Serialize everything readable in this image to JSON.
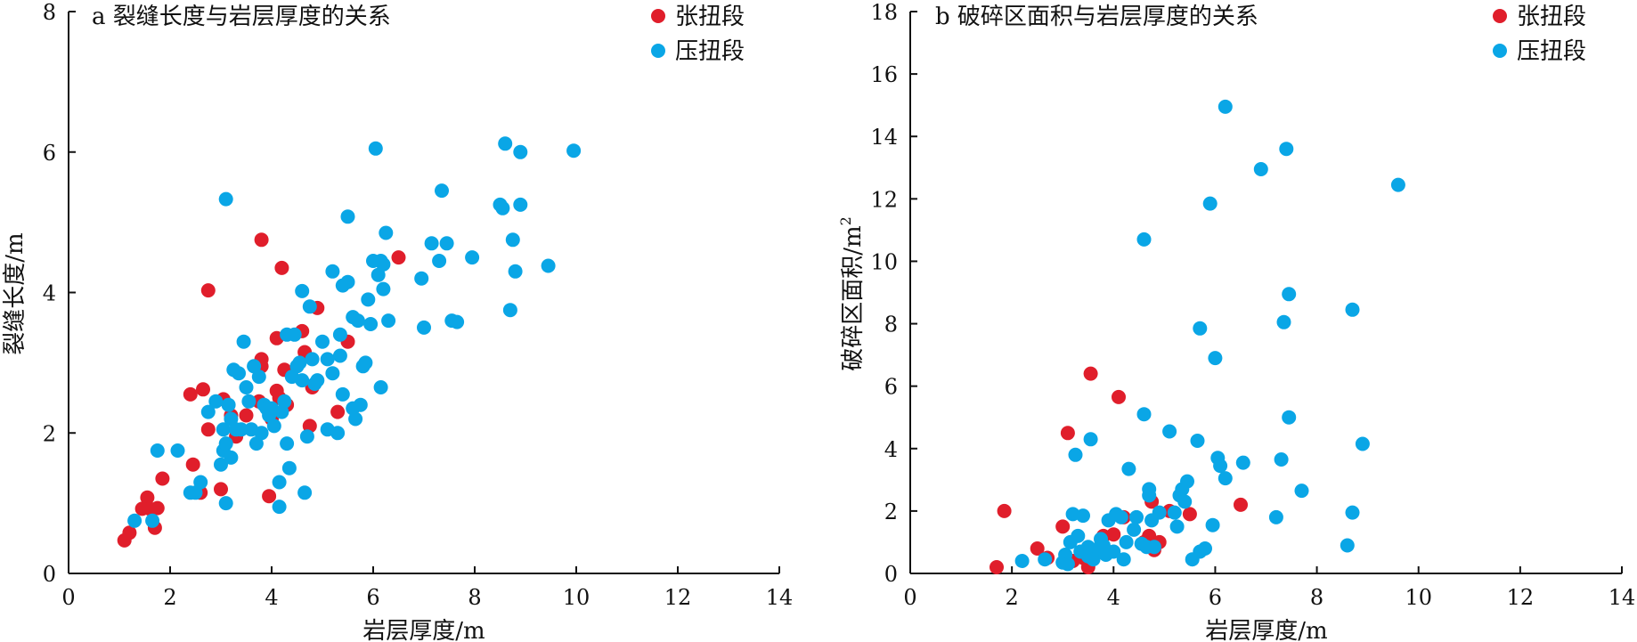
{
  "colors": {
    "red": "#e01e2b",
    "blue": "#0aa6e6"
  },
  "chart_data": [
    {
      "type": "scatter",
      "title": "a 裂缝长度与岩层厚度的关系",
      "xlabel": "岩层厚度/m",
      "ylabel": "裂缝长度/m",
      "xlim": [
        0,
        14
      ],
      "ylim": [
        0,
        8
      ],
      "xticks": [
        0,
        2,
        4,
        6,
        8,
        10,
        12,
        14
      ],
      "yticks": [
        0,
        2,
        4,
        6,
        8
      ],
      "legend_position": "top-right",
      "series": [
        {
          "name": "张扭段",
          "color": "#e01e2b",
          "points": [
            [
              1.1,
              0.47
            ],
            [
              1.2,
              0.58
            ],
            [
              1.45,
              0.92
            ],
            [
              1.55,
              1.08
            ],
            [
              1.6,
              0.92
            ],
            [
              1.7,
              0.65
            ],
            [
              1.75,
              0.93
            ],
            [
              1.85,
              1.35
            ],
            [
              2.4,
              2.55
            ],
            [
              2.45,
              1.55
            ],
            [
              2.6,
              1.15
            ],
            [
              2.65,
              2.62
            ],
            [
              2.75,
              2.05
            ],
            [
              2.75,
              4.03
            ],
            [
              3.0,
              1.2
            ],
            [
              3.05,
              2.48
            ],
            [
              3.2,
              2.25
            ],
            [
              3.3,
              1.95
            ],
            [
              3.5,
              2.25
            ],
            [
              3.75,
              2.45
            ],
            [
              3.8,
              4.75
            ],
            [
              3.8,
              3.05
            ],
            [
              3.8,
              2.95
            ],
            [
              3.95,
              1.1
            ],
            [
              4.0,
              2.2
            ],
            [
              4.1,
              2.6
            ],
            [
              4.1,
              3.35
            ],
            [
              4.15,
              2.5
            ],
            [
              4.2,
              4.35
            ],
            [
              4.25,
              2.9
            ],
            [
              4.3,
              2.4
            ],
            [
              4.6,
              3.45
            ],
            [
              4.65,
              3.15
            ],
            [
              4.75,
              2.1
            ],
            [
              4.8,
              2.65
            ],
            [
              4.9,
              3.78
            ],
            [
              5.3,
              2.3
            ],
            [
              5.5,
              3.3
            ],
            [
              6.5,
              4.5
            ]
          ]
        },
        {
          "name": "压扭段",
          "color": "#0aa6e6",
          "points": [
            [
              1.3,
              0.75
            ],
            [
              1.65,
              0.75
            ],
            [
              1.75,
              1.75
            ],
            [
              2.15,
              1.75
            ],
            [
              2.4,
              1.15
            ],
            [
              2.5,
              1.15
            ],
            [
              2.6,
              1.3
            ],
            [
              2.75,
              2.3
            ],
            [
              2.9,
              2.45
            ],
            [
              3.0,
              1.55
            ],
            [
              3.05,
              1.75
            ],
            [
              3.05,
              2.05
            ],
            [
              3.1,
              1.0
            ],
            [
              3.1,
              1.85
            ],
            [
              3.1,
              5.33
            ],
            [
              3.15,
              2.4
            ],
            [
              3.2,
              1.65
            ],
            [
              3.2,
              2.2
            ],
            [
              3.25,
              2.9
            ],
            [
              3.3,
              2.05
            ],
            [
              3.35,
              2.85
            ],
            [
              3.4,
              2.05
            ],
            [
              3.45,
              3.3
            ],
            [
              3.5,
              2.65
            ],
            [
              3.55,
              2.45
            ],
            [
              3.6,
              2.05
            ],
            [
              3.65,
              2.95
            ],
            [
              3.7,
              1.85
            ],
            [
              3.75,
              2.8
            ],
            [
              3.8,
              2.0
            ],
            [
              3.85,
              2.4
            ],
            [
              3.9,
              2.35
            ],
            [
              3.95,
              2.25
            ],
            [
              4.0,
              2.35
            ],
            [
              4.05,
              2.1
            ],
            [
              4.15,
              0.95
            ],
            [
              4.15,
              1.3
            ],
            [
              4.2,
              2.3
            ],
            [
              4.25,
              2.45
            ],
            [
              4.3,
              1.85
            ],
            [
              4.3,
              3.4
            ],
            [
              4.35,
              1.5
            ],
            [
              4.4,
              2.8
            ],
            [
              4.45,
              3.4
            ],
            [
              4.5,
              2.95
            ],
            [
              4.55,
              3.0
            ],
            [
              4.6,
              2.75
            ],
            [
              4.6,
              4.02
            ],
            [
              4.65,
              1.15
            ],
            [
              4.7,
              1.95
            ],
            [
              4.75,
              3.8
            ],
            [
              4.8,
              3.05
            ],
            [
              4.85,
              2.7
            ],
            [
              4.9,
              2.75
            ],
            [
              5.0,
              3.3
            ],
            [
              5.1,
              2.05
            ],
            [
              5.1,
              3.05
            ],
            [
              5.2,
              2.85
            ],
            [
              5.2,
              4.3
            ],
            [
              5.3,
              2.0
            ],
            [
              5.35,
              3.1
            ],
            [
              5.35,
              3.4
            ],
            [
              5.4,
              2.55
            ],
            [
              5.4,
              4.1
            ],
            [
              5.5,
              4.15
            ],
            [
              5.5,
              5.08
            ],
            [
              5.6,
              2.35
            ],
            [
              5.6,
              3.65
            ],
            [
              5.65,
              2.2
            ],
            [
              5.7,
              3.6
            ],
            [
              5.75,
              2.4
            ],
            [
              5.8,
              2.95
            ],
            [
              5.85,
              3.0
            ],
            [
              5.9,
              3.9
            ],
            [
              5.95,
              3.55
            ],
            [
              6.0,
              4.45
            ],
            [
              6.05,
              6.05
            ],
            [
              6.1,
              4.25
            ],
            [
              6.15,
              2.65
            ],
            [
              6.15,
              4.45
            ],
            [
              6.2,
              4.4
            ],
            [
              6.2,
              4.05
            ],
            [
              6.25,
              4.85
            ],
            [
              6.3,
              3.6
            ],
            [
              6.95,
              4.2
            ],
            [
              7.0,
              3.5
            ],
            [
              7.15,
              4.7
            ],
            [
              7.3,
              4.45
            ],
            [
              7.35,
              5.45
            ],
            [
              7.45,
              4.7
            ],
            [
              7.55,
              3.6
            ],
            [
              7.65,
              3.58
            ],
            [
              7.95,
              4.5
            ],
            [
              8.5,
              5.25
            ],
            [
              8.55,
              5.2
            ],
            [
              8.6,
              6.12
            ],
            [
              8.7,
              3.75
            ],
            [
              8.75,
              4.75
            ],
            [
              8.8,
              4.3
            ],
            [
              8.9,
              6.0
            ],
            [
              8.9,
              5.25
            ],
            [
              9.45,
              4.38
            ],
            [
              9.95,
              6.02
            ]
          ]
        }
      ]
    },
    {
      "type": "scatter",
      "title": "b 破碎区面积与岩层厚度的关系",
      "xlabel": "岩层厚度/m",
      "ylabel": "破碎区面积/m",
      "ylabel_sup": "2",
      "xlim": [
        0,
        14
      ],
      "ylim": [
        0,
        18
      ],
      "xticks": [
        0,
        2,
        4,
        6,
        8,
        10,
        12,
        14
      ],
      "yticks": [
        0,
        2,
        4,
        6,
        8,
        10,
        12,
        14,
        16,
        18
      ],
      "legend_position": "top-right",
      "series": [
        {
          "name": "张扭段",
          "color": "#e01e2b",
          "points": [
            [
              1.7,
              0.2
            ],
            [
              1.85,
              2.0
            ],
            [
              2.5,
              0.8
            ],
            [
              2.7,
              0.5
            ],
            [
              3.0,
              1.5
            ],
            [
              3.1,
              4.5
            ],
            [
              3.2,
              0.4
            ],
            [
              3.4,
              0.5
            ],
            [
              3.5,
              0.2
            ],
            [
              3.55,
              6.4
            ],
            [
              3.8,
              1.2
            ],
            [
              4.0,
              1.25
            ],
            [
              4.1,
              5.65
            ],
            [
              4.2,
              1.8
            ],
            [
              4.6,
              1.0
            ],
            [
              4.7,
              1.2
            ],
            [
              4.75,
              2.3
            ],
            [
              4.8,
              0.75
            ],
            [
              4.9,
              1.0
            ],
            [
              5.1,
              2.0
            ],
            [
              5.5,
              1.9
            ],
            [
              6.5,
              2.2
            ]
          ]
        },
        {
          "name": "压扭段",
          "color": "#0aa6e6",
          "points": [
            [
              2.2,
              0.4
            ],
            [
              2.65,
              0.45
            ],
            [
              3.0,
              0.35
            ],
            [
              3.05,
              0.6
            ],
            [
              3.1,
              0.3
            ],
            [
              3.15,
              1.0
            ],
            [
              3.2,
              1.9
            ],
            [
              3.25,
              3.8
            ],
            [
              3.3,
              1.2
            ],
            [
              3.35,
              0.7
            ],
            [
              3.4,
              1.85
            ],
            [
              3.5,
              0.55
            ],
            [
              3.5,
              0.85
            ],
            [
              3.55,
              4.3
            ],
            [
              3.6,
              0.45
            ],
            [
              3.7,
              0.8
            ],
            [
              3.75,
              1.1
            ],
            [
              3.8,
              0.9
            ],
            [
              3.85,
              0.6
            ],
            [
              3.9,
              1.7
            ],
            [
              4.0,
              0.7
            ],
            [
              4.05,
              1.9
            ],
            [
              4.15,
              1.8
            ],
            [
              4.2,
              0.45
            ],
            [
              4.25,
              1.0
            ],
            [
              4.3,
              3.35
            ],
            [
              4.4,
              1.4
            ],
            [
              4.45,
              1.8
            ],
            [
              4.55,
              0.95
            ],
            [
              4.6,
              5.1
            ],
            [
              4.6,
              10.7
            ],
            [
              4.65,
              0.85
            ],
            [
              4.7,
              2.7
            ],
            [
              4.7,
              2.5
            ],
            [
              4.75,
              1.7
            ],
            [
              4.8,
              0.85
            ],
            [
              4.9,
              1.95
            ],
            [
              5.1,
              4.55
            ],
            [
              5.2,
              1.95
            ],
            [
              5.25,
              1.5
            ],
            [
              5.3,
              2.5
            ],
            [
              5.35,
              2.7
            ],
            [
              5.4,
              2.3
            ],
            [
              5.45,
              2.95
            ],
            [
              5.55,
              0.45
            ],
            [
              5.65,
              4.25
            ],
            [
              5.7,
              7.85
            ],
            [
              5.7,
              0.7
            ],
            [
              5.8,
              0.8
            ],
            [
              5.9,
              11.85
            ],
            [
              5.95,
              1.55
            ],
            [
              6.0,
              6.9
            ],
            [
              6.05,
              3.7
            ],
            [
              6.1,
              3.45
            ],
            [
              6.2,
              3.05
            ],
            [
              6.2,
              14.95
            ],
            [
              6.55,
              3.55
            ],
            [
              6.9,
              12.95
            ],
            [
              7.2,
              1.8
            ],
            [
              7.3,
              3.65
            ],
            [
              7.35,
              8.05
            ],
            [
              7.4,
              13.6
            ],
            [
              7.45,
              8.95
            ],
            [
              7.45,
              5.0
            ],
            [
              7.7,
              2.65
            ],
            [
              8.6,
              0.9
            ],
            [
              8.7,
              1.95
            ],
            [
              8.7,
              8.45
            ],
            [
              8.9,
              4.15
            ],
            [
              9.6,
              12.45
            ]
          ]
        }
      ]
    }
  ]
}
